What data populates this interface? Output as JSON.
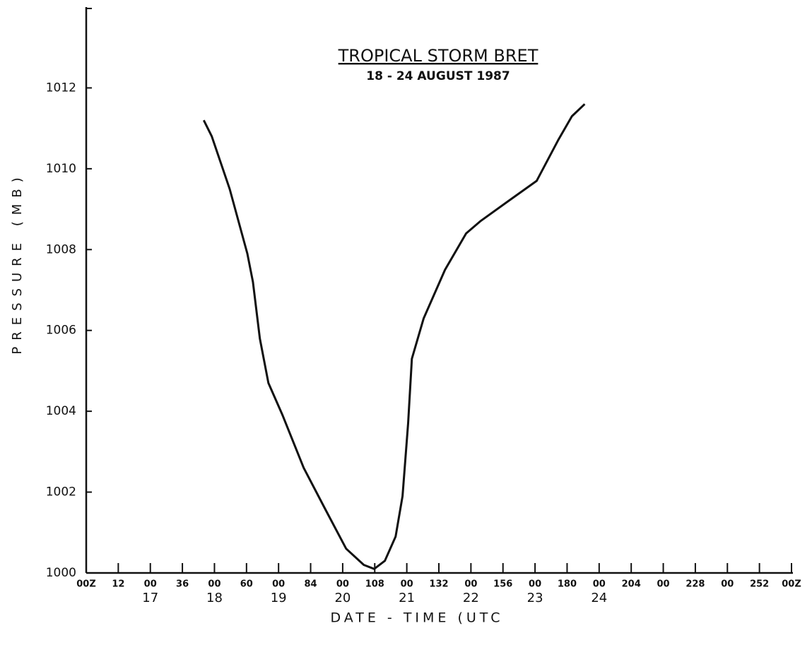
{
  "chart_data": {
    "type": "line",
    "title": "TROPICAL STORM BRET",
    "subtitle": "18 - 24 AUGUST 1987",
    "y_label": "PRESSURE (MB)",
    "x_label": "DATE - TIME (UTC",
    "xlim": [
      0,
      264
    ],
    "ylim": [
      1000,
      1014
    ],
    "yticks": [
      1000,
      1002,
      1004,
      1006,
      1008,
      1010,
      1012
    ],
    "xticks": [
      {
        "value": 0,
        "label": "00Z"
      },
      12,
      {
        "value": 24,
        "label": "00"
      },
      36,
      {
        "value": 48,
        "label": "00"
      },
      60,
      {
        "value": 72,
        "label": "00"
      },
      84,
      {
        "value": 96,
        "label": "00"
      },
      108,
      {
        "value": 120,
        "label": "00"
      },
      132,
      {
        "value": 144,
        "label": "00"
      },
      156,
      {
        "value": 168,
        "label": "00"
      },
      180,
      {
        "value": 192,
        "label": "00"
      },
      204,
      {
        "value": 216,
        "label": "00"
      },
      228,
      {
        "value": 240,
        "label": "00"
      },
      252,
      {
        "value": 264,
        "label": "00Z"
      }
    ],
    "day_ticks": [
      {
        "value": 24,
        "label": "17"
      },
      {
        "value": 48,
        "label": "18"
      },
      {
        "value": 72,
        "label": "19"
      },
      {
        "value": 96,
        "label": "20"
      },
      {
        "value": 120,
        "label": "21"
      },
      {
        "value": 144,
        "label": "22"
      },
      {
        "value": 168,
        "label": "23"
      },
      {
        "value": 192,
        "label": "24"
      }
    ],
    "series": [
      {
        "name": "Pressure",
        "color": "#111111",
        "x": [
          44,
          47,
          53.7,
          60.3,
          62.4,
          65,
          68.2,
          73.5,
          81.4,
          89.3,
          97.3,
          103.9,
          107.8,
          111.8,
          115.8,
          118.4,
          120.5,
          121.9,
          126.3,
          134.3,
          142.2,
          147.5,
          158,
          168.6,
          176.6,
          181.8,
          186.6
        ],
        "values": [
          1011.2,
          1010.8,
          1009.5,
          1007.9,
          1007.2,
          1005.8,
          1004.7,
          1003.9,
          1002.6,
          1001.6,
          1000.6,
          1000.2,
          1000.1,
          1000.3,
          1000.9,
          1001.9,
          1003.7,
          1005.3,
          1006.3,
          1007.5,
          1008.4,
          1008.7,
          1009.2,
          1009.7,
          1010.7,
          1011.3,
          1011.6
        ]
      }
    ]
  }
}
